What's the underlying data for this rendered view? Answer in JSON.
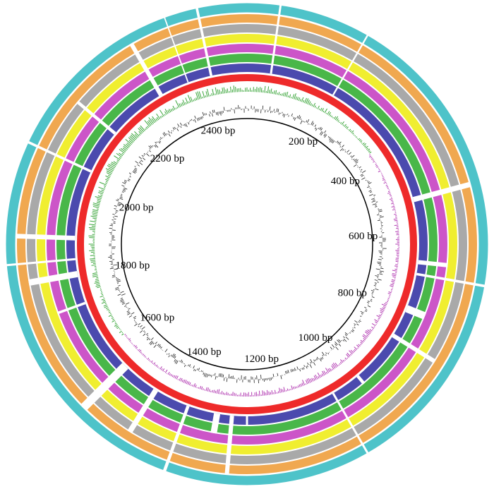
{
  "tick_labels": [
    "200 bp",
    "400 bp",
    "600 bp",
    "800 bp",
    "1000 bp",
    "1200 bp",
    "1400 bp",
    "1600 bp",
    "1800 bp",
    "2000 bp",
    "2200 bp",
    "2400 bp"
  ]
}
